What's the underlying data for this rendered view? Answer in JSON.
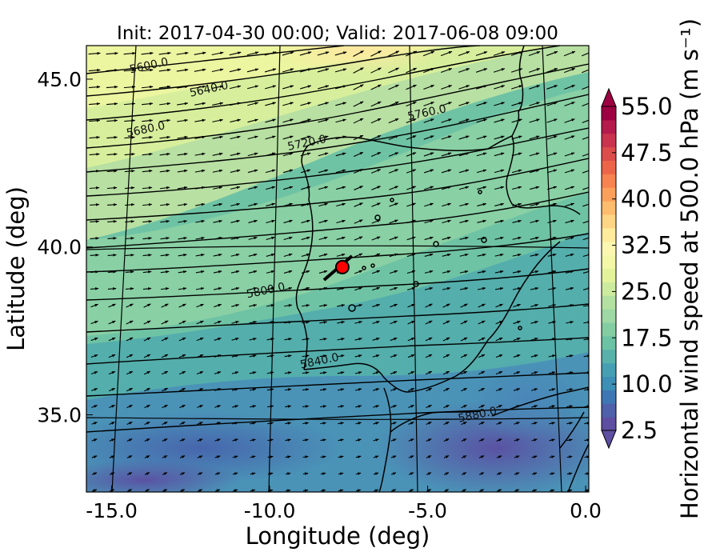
{
  "title": "Init: 2017-04-30 00:00; Valid: 2017-06-08 09:00",
  "xlabel": "Longitude (deg)",
  "ylabel": "Latitude (deg)",
  "x_ticks": [
    "-15.0",
    "-10.0",
    "-5.0",
    "0.0"
  ],
  "y_ticks": [
    "45.0",
    "40.0",
    "35.0"
  ],
  "colorbar": {
    "label": "Horizontal wind speed at 500.0 hPa (m s⁻¹)",
    "ticks": [
      "2.5",
      "10.0",
      "17.5",
      "25.0",
      "32.5",
      "40.0",
      "47.5",
      "55.0"
    ],
    "colors": [
      "#5e4fa2",
      "#4f61aa",
      "#3f77b4",
      "#3d8fb5",
      "#479fb3",
      "#58b2ab",
      "#6cc2a4",
      "#84cda3",
      "#9ed8a4",
      "#b4e1a2",
      "#cdeb9e",
      "#e2f39b",
      "#f2f8a8",
      "#fbf6b0",
      "#feeb9c",
      "#fed585",
      "#fdbc6e",
      "#fba05b",
      "#f68350",
      "#ec6549",
      "#dc4c4b",
      "#c9334e",
      "#b41a4c",
      "#9e0142"
    ]
  },
  "chart_data": {
    "type": "map",
    "x_range": [
      -15.8,
      0.1
    ],
    "y_range": [
      32.7,
      46.0
    ],
    "marker": {
      "lon": -7.7,
      "lat": 39.4,
      "color": "#ff0000"
    },
    "contours": [
      {
        "label": "5600.0",
        "label_lon": -13.8,
        "label_lat": 45.3
      },
      {
        "label": "5640.0",
        "label_lon": -11.9,
        "label_lat": 44.6
      },
      {
        "label": "5680.0",
        "label_lon": -13.9,
        "label_lat": 43.4
      },
      {
        "label": "5720.0",
        "label_lon": -8.8,
        "label_lat": 43.0
      },
      {
        "label": "5760.0",
        "label_lon": -5.0,
        "label_lat": 43.9
      },
      {
        "label": "5800.0",
        "label_lon": -10.1,
        "label_lat": 38.6
      },
      {
        "label": "5840.0",
        "label_lon": -8.4,
        "label_lat": 36.5
      },
      {
        "label": "5880.0",
        "label_lon": -3.4,
        "label_lat": 34.9
      }
    ]
  }
}
